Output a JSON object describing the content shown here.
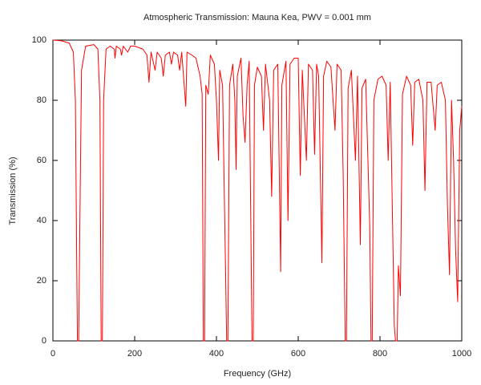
{
  "chart_data": {
    "type": "line",
    "title": "Atmospheric Transmission: Mauna Kea, PWV = 0.001 mm",
    "x_label": "Frequency (GHz)",
    "y_label": "Transmission (%)",
    "xlim": [
      0,
      1000
    ],
    "xticks": [
      0,
      200,
      400,
      600,
      800,
      1000
    ],
    "ylim": [
      0,
      100
    ],
    "yticks": [
      0,
      20,
      40,
      60,
      80,
      100
    ],
    "grid": false,
    "series": [
      {
        "color": "#ff0000",
        "x": [
          0,
          20,
          40,
          50,
          55,
          58,
          60,
          63,
          66,
          70,
          80,
          100,
          110,
          115,
          118,
          121,
          124,
          130,
          140,
          150,
          152,
          155,
          165,
          168,
          172,
          183,
          190,
          200,
          210,
          220,
          230,
          235,
          240,
          250,
          255,
          265,
          270,
          275,
          285,
          290,
          295,
          305,
          310,
          315,
          325,
          328,
          340,
          350,
          360,
          365,
          368,
          371,
          374,
          380,
          385,
          395,
          400,
          405,
          408,
          415,
          425,
          428,
          432,
          440,
          445,
          448,
          451,
          460,
          465,
          470,
          475,
          480,
          487,
          490,
          493,
          500,
          510,
          515,
          520,
          530,
          535,
          540,
          550,
          557,
          560,
          570,
          575,
          580,
          590,
          600,
          605,
          610,
          620,
          625,
          635,
          640,
          645,
          650,
          658,
          662,
          670,
          680,
          690,
          695,
          705,
          710,
          715,
          718,
          722,
          730,
          740,
          745,
          752,
          756,
          765,
          775,
          778,
          781,
          785,
          795,
          805,
          815,
          820,
          825,
          835,
          838,
          842,
          845,
          850,
          855,
          865,
          875,
          880,
          885,
          895,
          905,
          910,
          915,
          925,
          935,
          940,
          950,
          960,
          965,
          970,
          975,
          980,
          985,
          990,
          995,
          1000
        ],
        "values": [
          100,
          99.8,
          99,
          96,
          80,
          30,
          0,
          0,
          40,
          90,
          98,
          98.5,
          97,
          80,
          0,
          0,
          80,
          97,
          98,
          97,
          94,
          98,
          97,
          95,
          98,
          96,
          98,
          98,
          97.5,
          97,
          95,
          86,
          96,
          90,
          96,
          94,
          88,
          95,
          96,
          92,
          96,
          95,
          90,
          96,
          78,
          96,
          95,
          94,
          88,
          82,
          0,
          0,
          85,
          82,
          95,
          92,
          80,
          60,
          90,
          85,
          0,
          0,
          85,
          92,
          80,
          57,
          88,
          94,
          75,
          66,
          85,
          93,
          0,
          0,
          85,
          91,
          88,
          70,
          92,
          80,
          48,
          90,
          92,
          23,
          85,
          93,
          40,
          92,
          94,
          94,
          55,
          90,
          60,
          92,
          90,
          62,
          92,
          88,
          26,
          88,
          93,
          91,
          70,
          92,
          90,
          55,
          0,
          0,
          84,
          90,
          60,
          88,
          32,
          84,
          87,
          38,
          0,
          0,
          80,
          87,
          88,
          85,
          60,
          86,
          5,
          0,
          0,
          25,
          15,
          82,
          88,
          85,
          65,
          86,
          87,
          80,
          50,
          86,
          86,
          70,
          85,
          86,
          80,
          45,
          22,
          80,
          60,
          30,
          13,
          70,
          78
        ]
      }
    ]
  }
}
